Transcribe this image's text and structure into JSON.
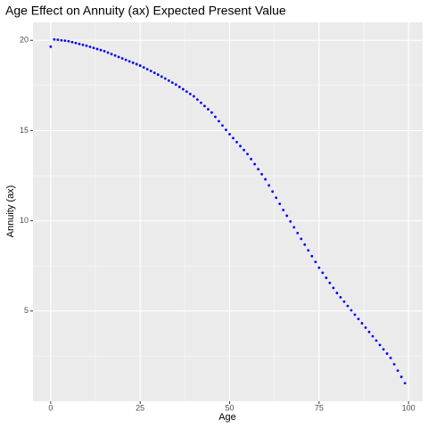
{
  "chart_data": {
    "type": "scatter",
    "title": "Age Effect on Annuity (ax) Expected Present Value",
    "x_label": "Age",
    "y_label": "Annuity (ax)",
    "color": "#0000ff",
    "x": [
      0,
      1,
      2,
      3,
      4,
      5,
      6,
      7,
      8,
      9,
      10,
      11,
      12,
      13,
      14,
      15,
      16,
      17,
      18,
      19,
      20,
      21,
      22,
      23,
      24,
      25,
      26,
      27,
      28,
      29,
      30,
      31,
      32,
      33,
      34,
      35,
      36,
      37,
      38,
      39,
      40,
      41,
      42,
      43,
      44,
      45,
      46,
      47,
      48,
      49,
      50,
      51,
      52,
      53,
      54,
      55,
      56,
      57,
      58,
      59,
      60,
      61,
      62,
      63,
      64,
      65,
      66,
      67,
      68,
      69,
      70,
      71,
      72,
      73,
      74,
      75,
      76,
      77,
      78,
      79,
      80,
      81,
      82,
      83,
      84,
      85,
      86,
      87,
      88,
      89,
      90,
      91,
      92,
      93,
      94,
      95,
      96,
      97,
      98,
      99
    ],
    "values": [
      19.65,
      20.05,
      20.03,
      20.0,
      19.98,
      19.95,
      19.9,
      19.85,
      19.8,
      19.75,
      19.7,
      19.64,
      19.58,
      19.52,
      19.46,
      19.4,
      19.32,
      19.24,
      19.16,
      19.08,
      19.0,
      18.92,
      18.84,
      18.76,
      18.68,
      18.6,
      18.5,
      18.4,
      18.3,
      18.2,
      18.1,
      17.99,
      17.88,
      17.77,
      17.66,
      17.55,
      17.42,
      17.29,
      17.16,
      17.03,
      16.9,
      16.72,
      16.54,
      16.36,
      16.18,
      16.0,
      15.76,
      15.52,
      15.28,
      15.04,
      14.8,
      14.58,
      14.36,
      14.14,
      13.92,
      13.7,
      13.42,
      13.14,
      12.86,
      12.58,
      12.3,
      11.96,
      11.62,
      11.28,
      10.94,
      10.6,
      10.28,
      9.96,
      9.64,
      9.32,
      9.0,
      8.68,
      8.36,
      8.04,
      7.72,
      7.4,
      7.12,
      6.84,
      6.56,
      6.28,
      6.0,
      5.76,
      5.52,
      5.28,
      5.04,
      4.8,
      4.56,
      4.32,
      4.08,
      3.84,
      3.6,
      3.36,
      3.12,
      2.88,
      2.64,
      2.4,
      2.05,
      1.7,
      1.35,
      1.0
    ],
    "xlim": [
      -4.95,
      103.95
    ],
    "xticks": [
      0,
      25,
      50,
      75,
      100
    ],
    "ylim": [
      0,
      21
    ],
    "yticks": [
      5,
      10,
      15,
      20
    ],
    "grid": true
  }
}
